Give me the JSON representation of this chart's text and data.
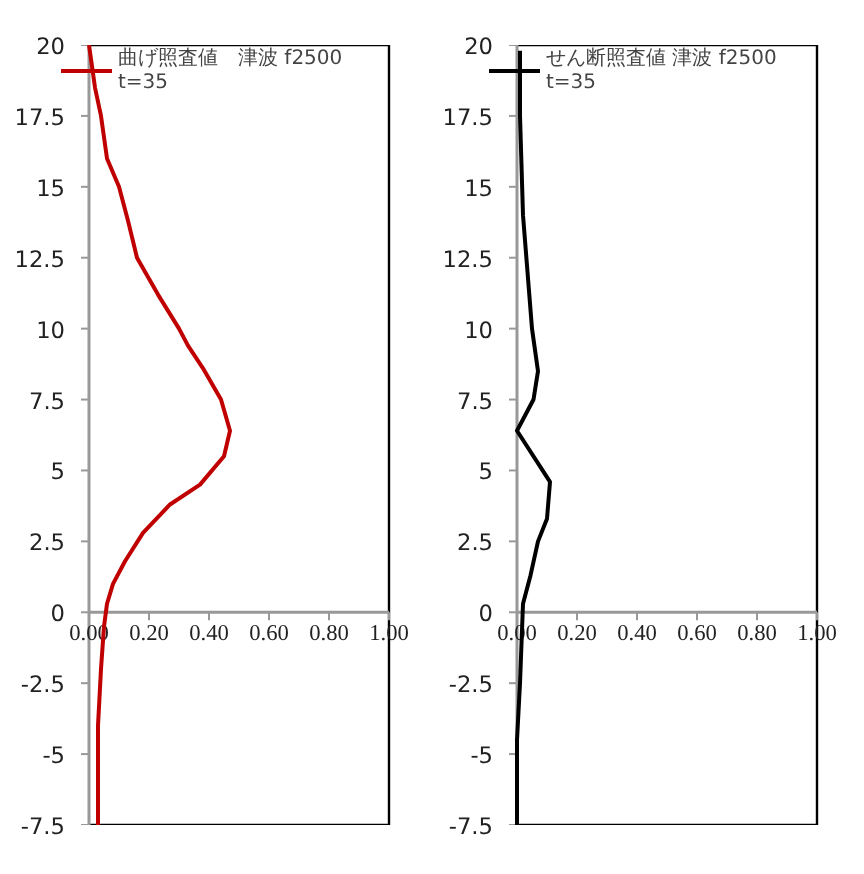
{
  "chart_data": [
    {
      "type": "line",
      "xlim": [
        0,
        1
      ],
      "xticks": [
        {
          "value": 0,
          "label": "0.00"
        },
        {
          "value": 0.2,
          "label": "0.20"
        },
        {
          "value": 0.4,
          "label": "0.40"
        },
        {
          "value": 0.6,
          "label": "0.60"
        },
        {
          "value": 0.8,
          "label": "0.80"
        },
        {
          "value": 1,
          "label": "1.00"
        }
      ],
      "ylim": [
        -7.5,
        20
      ],
      "yticks": [
        -7.5,
        -5,
        -2.5,
        0,
        2.5,
        5,
        7.5,
        10,
        12.5,
        15,
        17.5,
        20
      ],
      "grid": false,
      "legend": "top left",
      "series": [
        {
          "name": "曲げ照査値　津波 f2500\nt=35",
          "color": "#c00000",
          "x": [
            0.0,
            0.02,
            0.04,
            0.06,
            0.1,
            0.13,
            0.16,
            0.23,
            0.3,
            0.33,
            0.38,
            0.44,
            0.47,
            0.45,
            0.37,
            0.27,
            0.18,
            0.12,
            0.08,
            0.06,
            0.05,
            0.04,
            0.03,
            0.03
          ],
          "values": [
            20,
            18.5,
            17.5,
            16,
            15,
            13.8,
            12.5,
            11.2,
            10,
            9.4,
            8.6,
            7.5,
            6.4,
            5.5,
            4.5,
            3.8,
            2.8,
            1.8,
            1,
            0.3,
            -0.5,
            -2,
            -4,
            -7.5
          ]
        }
      ]
    },
    {
      "type": "line",
      "xlim": [
        0,
        1
      ],
      "xticks": [
        {
          "value": 0,
          "label": "0.00"
        },
        {
          "value": 0.2,
          "label": "0.20"
        },
        {
          "value": 0.4,
          "label": "0.40"
        },
        {
          "value": 0.6,
          "label": "0.60"
        },
        {
          "value": 0.8,
          "label": "0.80"
        },
        {
          "value": 1,
          "label": "1.00"
        }
      ],
      "ylim": [
        -7.5,
        20
      ],
      "yticks": [
        -7.5,
        -5,
        -2.5,
        0,
        2.5,
        5,
        7.5,
        10,
        12.5,
        15,
        17.5,
        20
      ],
      "grid": false,
      "legend": "top left",
      "series": [
        {
          "name": "せん断照査値 津波 f2500\nt=35",
          "color": "#000000",
          "x": [
            0.01,
            0.01,
            0.02,
            0.05,
            0.07,
            0.055,
            0.0,
            0.11,
            0.1,
            0.07,
            0.045,
            0.02,
            0.01,
            0.0,
            0.0
          ],
          "values": [
            19.8,
            17.5,
            14,
            10,
            8.5,
            7.5,
            6.4,
            4.6,
            3.3,
            2.5,
            1.3,
            0.3,
            -2.5,
            -4.5,
            -7.5
          ]
        }
      ]
    }
  ]
}
